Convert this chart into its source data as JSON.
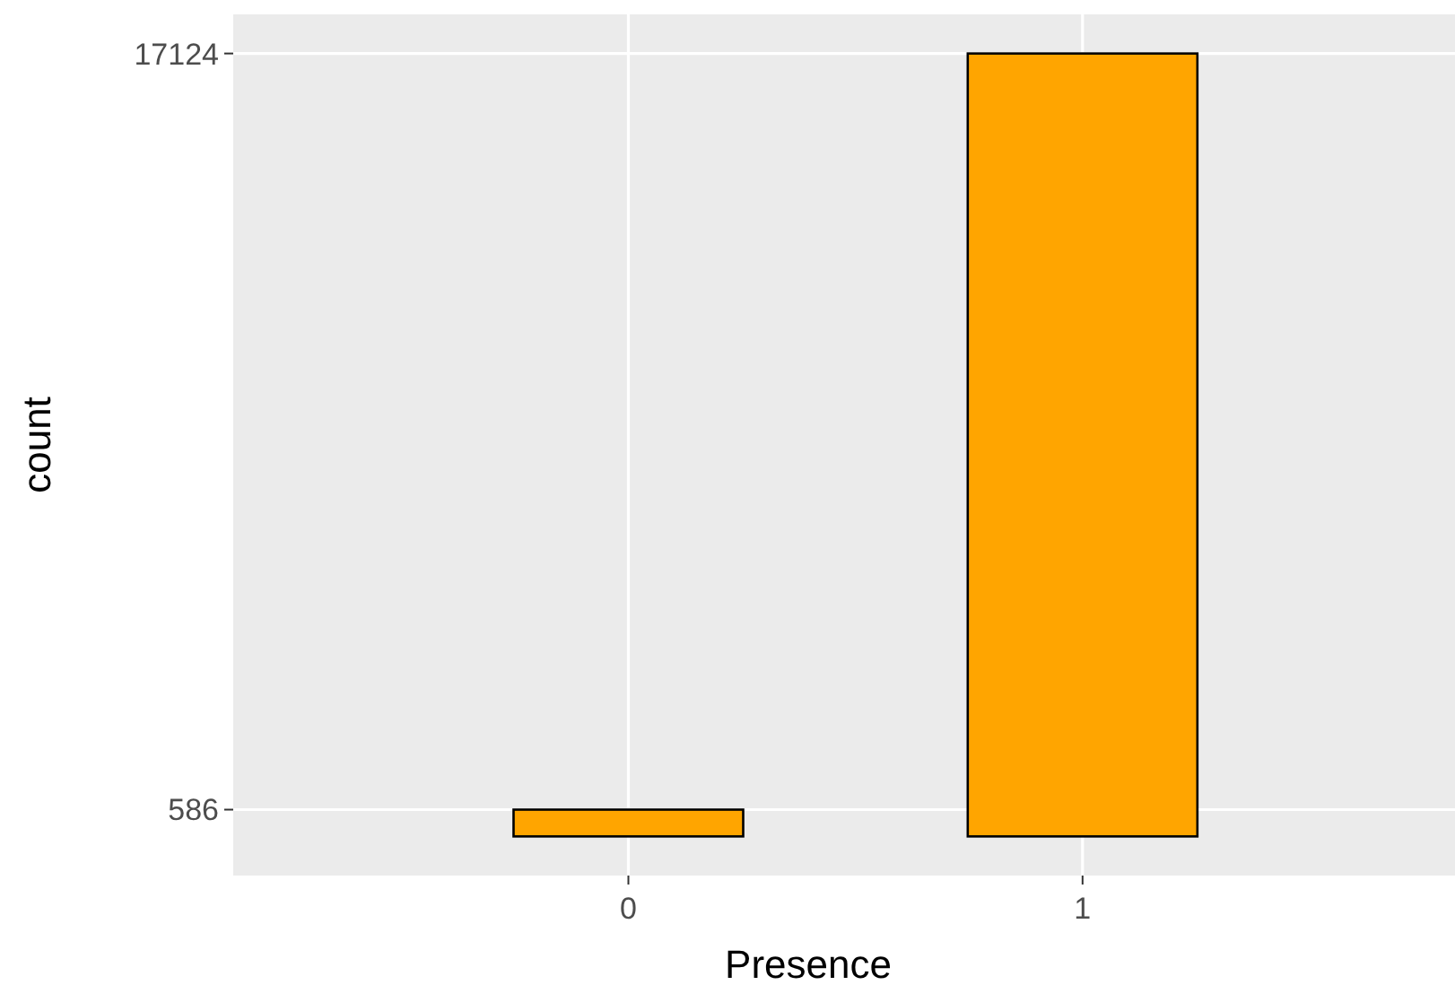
{
  "chart_data": {
    "type": "bar",
    "xlabel": "Presence",
    "ylabel": "count",
    "categories": [
      "0",
      "1"
    ],
    "values": [
      586,
      17124
    ],
    "color": "#ffa500",
    "ylim": [
      -856,
      17980
    ],
    "yticks": [
      586,
      17124
    ],
    "grid": true
  }
}
